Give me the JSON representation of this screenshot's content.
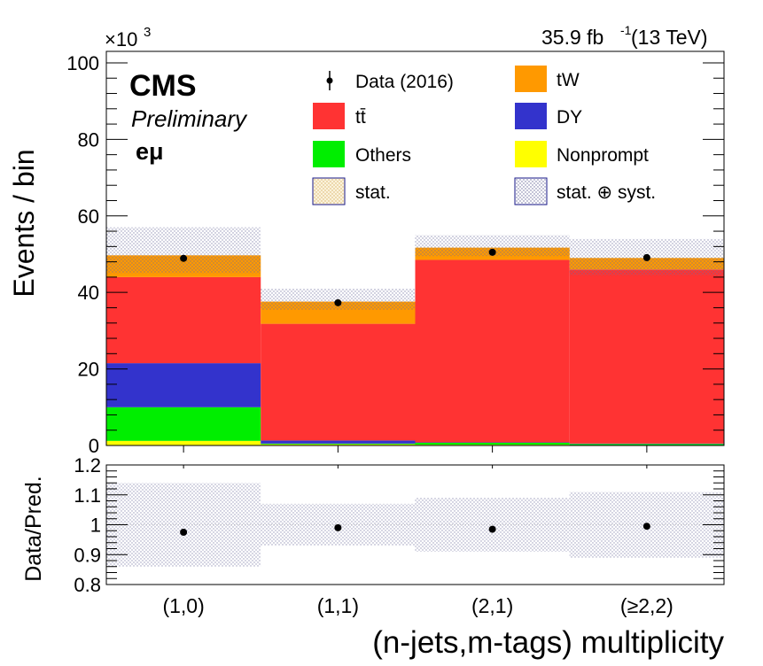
{
  "header": {
    "lumi": "35.9 fb",
    "lumi_exp": "-1",
    "energy": " (13 TeV)",
    "multiplier_base": "×10",
    "multiplier_exp": "3"
  },
  "labels": {
    "cms": "CMS",
    "preliminary": "Preliminary",
    "channel": "eμ"
  },
  "legend": {
    "data": "Data (2016)",
    "ttbar": "tt̄",
    "others": "Others",
    "stat": "stat.",
    "tw": "tW",
    "dy": "DY",
    "nonprompt": "Nonprompt",
    "stat_syst": "stat. ⊕ syst."
  },
  "colors": {
    "ttbar": "#ff3333",
    "tw": "#ff9900",
    "dy": "#3333cc",
    "others": "#00ee00",
    "nonprompt": "#ffff00",
    "data": "#000000"
  },
  "chart_data": {
    "type": "bar",
    "stacked": true,
    "categories": [
      "(1,0)",
      "(1,1)",
      "(2,1)",
      "(≥2,2)"
    ],
    "xlabel": "(n-jets,m-tags) multiplicity",
    "ylabel": "Events / bin",
    "ylim": [
      0,
      103
    ],
    "y_scale_factor": 1000,
    "yticks": [
      0,
      20,
      40,
      60,
      80,
      100
    ],
    "series": [
      {
        "name": "Nonprompt",
        "color_key": "nonprompt",
        "values": [
          1.2,
          0.3,
          0.2,
          0.1
        ]
      },
      {
        "name": "Others",
        "color_key": "others",
        "values": [
          8.8,
          0.2,
          0.5,
          0.3
        ]
      },
      {
        "name": "DY",
        "color_key": "dy",
        "values": [
          11.5,
          0.8,
          0.1,
          0.1
        ]
      },
      {
        "name": "tt̄",
        "color_key": "ttbar",
        "values": [
          22.5,
          30.5,
          47.7,
          45.5
        ]
      },
      {
        "name": "tW",
        "color_key": "tw",
        "values": [
          5.7,
          5.8,
          3.2,
          3.0
        ]
      }
    ],
    "data": [
      48.9,
      37.3,
      50.5,
      49.1
    ],
    "band_total_low": [
      45.0,
      35.5,
      49.5,
      44.5
    ],
    "band_total_high": [
      57.0,
      41.0,
      55.0,
      54.0
    ],
    "ratio": {
      "ylabel": "Data/Pred.",
      "ylim": [
        0.8,
        1.2
      ],
      "yticks": [
        0.8,
        0.9,
        1,
        1.1,
        1.2
      ],
      "ytick_labels": [
        "0.8",
        "0.9",
        "1",
        "1.1",
        "1.2"
      ],
      "values": [
        0.975,
        0.99,
        0.985,
        0.995
      ],
      "band_low": [
        0.86,
        0.93,
        0.91,
        0.89
      ],
      "band_high": [
        1.14,
        1.07,
        1.09,
        1.11
      ]
    }
  }
}
